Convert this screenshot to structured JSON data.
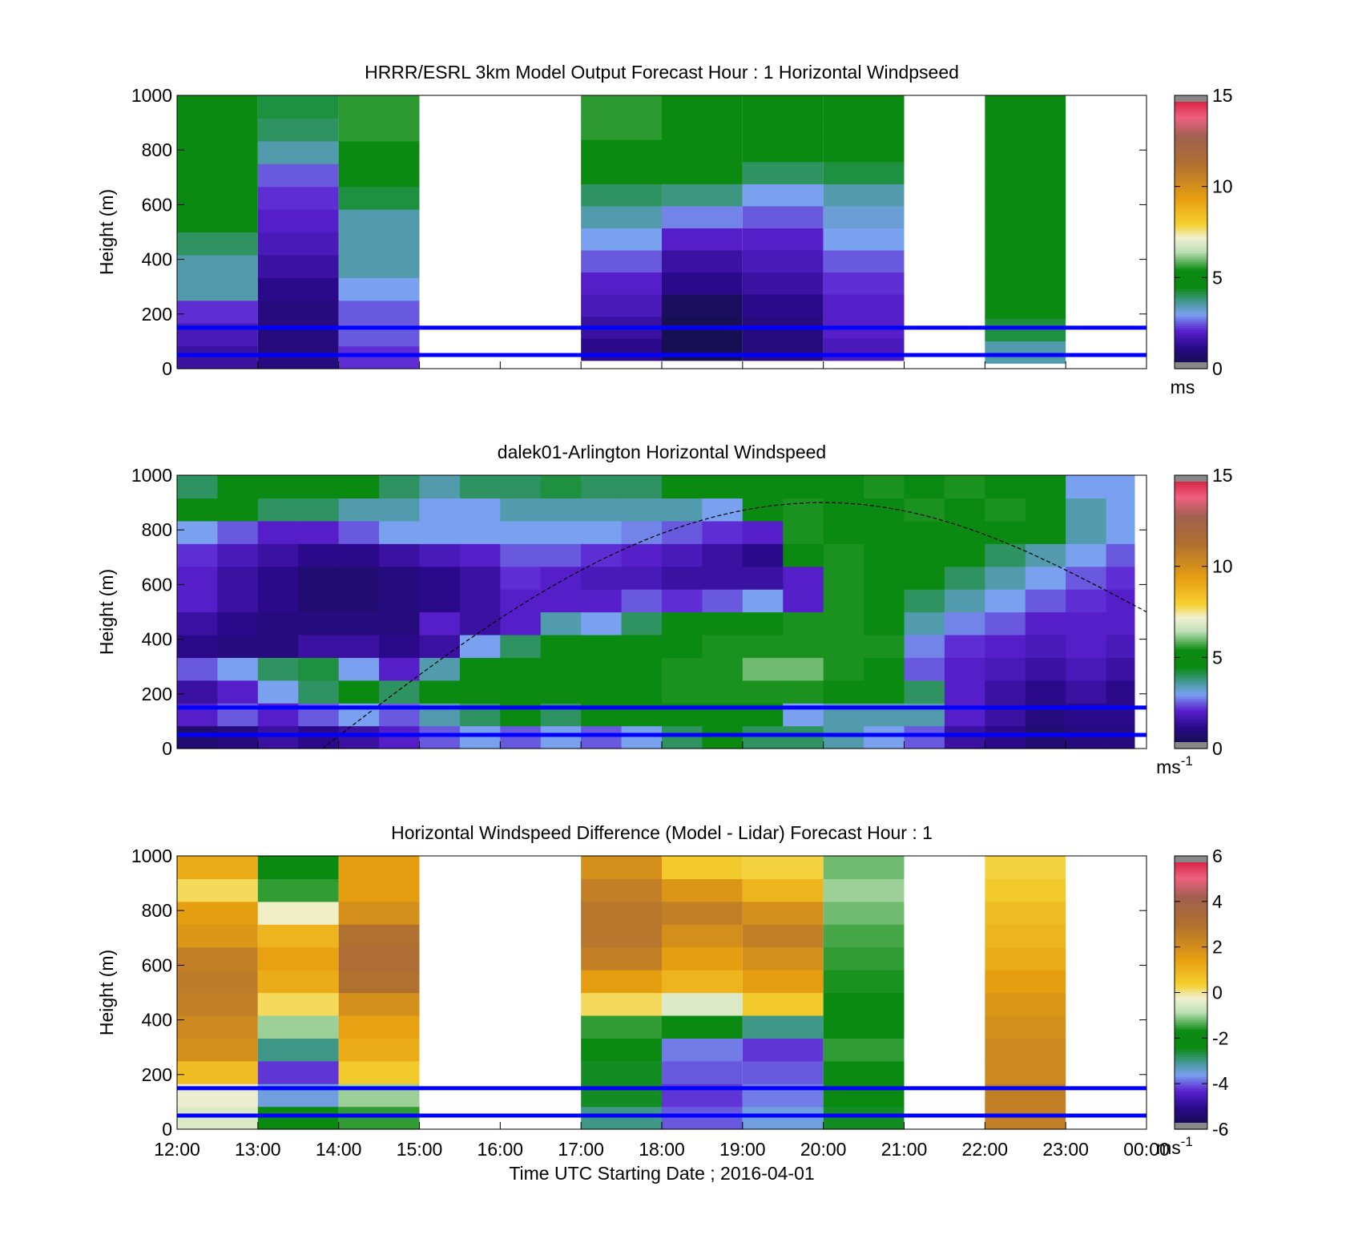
{
  "chart_data": [
    {
      "type": "heatmap",
      "title": "HRRR/ESRL 3km Model Output   Forecast Hour : 1 Horizontal Windpseed",
      "ylabel": "Height (m)",
      "xlabel": "",
      "ylim": [
        0,
        1000
      ],
      "yticks": [
        "0",
        "200",
        "400",
        "600",
        "800",
        "1000"
      ],
      "x_ticks": [
        "12:00",
        "13:00",
        "14:00",
        "15:00",
        "16:00",
        "17:00",
        "18:00",
        "19:00",
        "20:00",
        "21:00",
        "22:00",
        "23:00",
        "00:00"
      ],
      "xlim_hours": [
        12,
        24
      ],
      "colorbar": {
        "range": [
          0,
          15
        ],
        "ticks": [
          "0",
          "5",
          "10",
          "15"
        ],
        "unit": "ms",
        "unit_sup": ""
      },
      "reference_lines_m": [
        50,
        150
      ],
      "columns": [
        {
          "start": 12,
          "end": 13,
          "bottom": 0,
          "top": 1000,
          "values": [
            1.5,
            1.8,
            2.2,
            3.5,
            3.5,
            4.0,
            5.0,
            5.0,
            5.0,
            5.2,
            5.2,
            5.2
          ]
        },
        {
          "start": 13,
          "end": 14,
          "bottom": 0,
          "top": 1000,
          "values": [
            1.0,
            1.0,
            1.0,
            1.2,
            1.5,
            1.8,
            2.0,
            2.2,
            2.5,
            3.5,
            4.0,
            4.2
          ]
        },
        {
          "start": 14,
          "end": 15,
          "bottom": 0,
          "top": 1000,
          "values": [
            2.2,
            2.5,
            2.5,
            3.0,
            3.5,
            3.5,
            3.5,
            4.2,
            4.5,
            5.2,
            5.6,
            5.6
          ]
        },
        {
          "start": 17,
          "end": 18,
          "bottom": 30,
          "top": 1000,
          "values": [
            1.2,
            1.5,
            1.8,
            2.0,
            2.5,
            3.0,
            3.5,
            4.0,
            5.0,
            5.2,
            5.6,
            5.6
          ]
        },
        {
          "start": 18,
          "end": 19,
          "bottom": 30,
          "top": 1000,
          "values": [
            0.3,
            0.3,
            0.5,
            1.2,
            1.5,
            2.0,
            2.8,
            3.8,
            4.6,
            4.8,
            5.2,
            5.2
          ]
        },
        {
          "start": 19,
          "end": 20,
          "bottom": 30,
          "top": 1000,
          "values": [
            1.0,
            1.0,
            1.2,
            1.5,
            1.8,
            2.0,
            2.5,
            3.0,
            4.0,
            4.8,
            5.2,
            5.2
          ]
        },
        {
          "start": 20,
          "end": 21,
          "bottom": 30,
          "top": 1000,
          "values": [
            1.8,
            2.0,
            2.0,
            2.2,
            2.5,
            3.0,
            3.2,
            3.5,
            4.2,
            4.8,
            5.2,
            5.2
          ]
        },
        {
          "start": 22,
          "end": 23,
          "bottom": 20,
          "top": 1000,
          "values": [
            3.5,
            4.2,
            4.6,
            4.8,
            5.0,
            5.0,
            5.2,
            5.2,
            5.2,
            5.2,
            5.2,
            5.2
          ]
        }
      ]
    },
    {
      "type": "heatmap",
      "title": "dalek01-Arlington  Horizontal Windspeed",
      "ylabel": "Height (m)",
      "xlabel": "",
      "ylim": [
        0,
        1000
      ],
      "yticks": [
        "0",
        "200",
        "400",
        "600",
        "800",
        "1000"
      ],
      "x_ticks": [
        "12:00",
        "13:00",
        "14:00",
        "15:00",
        "16:00",
        "17:00",
        "18:00",
        "19:00",
        "20:00",
        "21:00",
        "22:00",
        "23:00",
        "00:00"
      ],
      "xlim_hours": [
        12,
        24
      ],
      "colorbar": {
        "range": [
          0,
          15
        ],
        "ticks": [
          "0",
          "5",
          "10",
          "15"
        ],
        "unit": "ms",
        "unit_sup": "-1"
      },
      "reference_lines_m": [
        50,
        150
      ],
      "data_end_hour": 23.85,
      "boundary_layer_curve": {
        "start_hour": 13.8,
        "peak_hour": 20.0,
        "peak_height_m": 900,
        "end_hour": 24.0,
        "end_height_m": 500
      },
      "stations": [
        {
          "hour": 12.0,
          "values": [
            0.8,
            2.0,
            1.5,
            2.5,
            1.2,
            1.5,
            2.0,
            2.0,
            2.2,
            3.0,
            5.0,
            4.0
          ]
        },
        {
          "hour": 12.5,
          "values": [
            1.0,
            2.5,
            2.0,
            3.0,
            1.0,
            1.2,
            1.5,
            1.5,
            1.8,
            2.5,
            4.5,
            4.5
          ]
        },
        {
          "hour": 13.0,
          "values": [
            1.5,
            2.0,
            3.0,
            4.0,
            1.0,
            1.0,
            1.2,
            1.2,
            1.5,
            2.0,
            4.0,
            4.8
          ]
        },
        {
          "hour": 13.5,
          "values": [
            1.2,
            2.5,
            4.0,
            4.2,
            1.5,
            1.0,
            0.8,
            0.8,
            1.2,
            2.0,
            4.0,
            5.0
          ]
        },
        {
          "hour": 14.0,
          "values": [
            1.5,
            3.0,
            4.5,
            3.0,
            1.5,
            1.0,
            0.8,
            0.8,
            1.2,
            2.5,
            3.5,
            4.5
          ]
        },
        {
          "hour": 14.5,
          "values": [
            2.0,
            2.5,
            4.0,
            2.0,
            1.2,
            1.0,
            1.0,
            1.0,
            1.5,
            3.0,
            3.5,
            4.0
          ]
        },
        {
          "hour": 15.0,
          "values": [
            2.5,
            3.5,
            4.5,
            3.5,
            1.5,
            2.0,
            1.2,
            1.2,
            1.8,
            3.0,
            3.0,
            3.5
          ]
        },
        {
          "hour": 15.5,
          "values": [
            3.0,
            4.0,
            4.5,
            4.5,
            3.0,
            1.5,
            1.5,
            1.5,
            2.0,
            3.0,
            3.0,
            4.0
          ]
        },
        {
          "hour": 16.0,
          "values": [
            2.5,
            4.5,
            5.0,
            5.0,
            4.0,
            2.0,
            2.0,
            2.2,
            2.5,
            3.0,
            3.5,
            4.0
          ]
        },
        {
          "hour": 16.5,
          "values": [
            3.0,
            4.0,
            5.0,
            5.2,
            5.0,
            3.5,
            2.0,
            2.0,
            2.5,
            3.0,
            3.5,
            4.2
          ]
        },
        {
          "hour": 17.0,
          "values": [
            2.5,
            4.5,
            5.2,
            5.2,
            5.0,
            3.0,
            2.0,
            1.8,
            2.2,
            3.0,
            3.5,
            4.0
          ]
        },
        {
          "hour": 17.5,
          "values": [
            3.0,
            4.5,
            5.2,
            5.2,
            5.2,
            4.0,
            2.5,
            1.8,
            2.0,
            2.8,
            3.5,
            4.0
          ]
        },
        {
          "hour": 18.0,
          "values": [
            4.0,
            5.0,
            5.5,
            5.5,
            5.2,
            5.0,
            2.2,
            1.5,
            1.8,
            2.5,
            3.5,
            4.5
          ]
        },
        {
          "hour": 18.5,
          "values": [
            4.5,
            5.0,
            5.5,
            5.5,
            5.5,
            5.0,
            2.5,
            1.5,
            1.5,
            2.2,
            3.0,
            5.0
          ]
        },
        {
          "hour": 19.0,
          "values": [
            4.0,
            4.5,
            5.5,
            6.0,
            5.5,
            4.5,
            3.0,
            1.5,
            1.2,
            2.0,
            4.5,
            5.0
          ]
        },
        {
          "hour": 19.5,
          "values": [
            4.0,
            3.0,
            5.5,
            6.0,
            5.5,
            5.5,
            2.0,
            2.0,
            5.0,
            5.5,
            5.5,
            5.2
          ]
        },
        {
          "hour": 20.0,
          "values": [
            3.5,
            3.5,
            5.0,
            5.5,
            5.5,
            5.5,
            5.5,
            5.5,
            5.5,
            5.2,
            5.2,
            5.0
          ]
        },
        {
          "hour": 20.5,
          "values": [
            3.0,
            3.5,
            4.5,
            5.0,
            5.5,
            5.2,
            5.2,
            5.0,
            5.0,
            5.2,
            5.0,
            5.5
          ]
        },
        {
          "hour": 21.0,
          "values": [
            2.5,
            3.5,
            4.0,
            2.5,
            2.8,
            3.5,
            4.0,
            4.5,
            4.5,
            5.0,
            5.5,
            5.0
          ]
        },
        {
          "hour": 21.5,
          "values": [
            1.5,
            2.0,
            2.0,
            2.0,
            2.2,
            2.8,
            3.5,
            4.0,
            4.8,
            5.0,
            5.2,
            5.5
          ]
        },
        {
          "hour": 22.0,
          "values": [
            1.2,
            1.5,
            1.5,
            1.8,
            2.0,
            2.5,
            3.0,
            3.5,
            4.0,
            4.8,
            5.5,
            5.2
          ]
        },
        {
          "hour": 22.5,
          "values": [
            0.8,
            1.0,
            1.2,
            1.5,
            1.8,
            2.0,
            2.5,
            3.0,
            3.5,
            4.5,
            5.0,
            4.5
          ]
        },
        {
          "hour": 23.0,
          "values": [
            1.0,
            1.2,
            1.5,
            1.8,
            2.0,
            2.0,
            2.2,
            2.5,
            3.0,
            3.5,
            3.5,
            3.0
          ]
        },
        {
          "hour": 23.5,
          "values": [
            1.0,
            1.2,
            1.2,
            1.5,
            1.8,
            2.0,
            2.0,
            2.2,
            2.5,
            3.0,
            3.0,
            3.0
          ]
        }
      ]
    },
    {
      "type": "heatmap",
      "title": "Horizontal Windspeed Difference (Model - Lidar) Forecast Hour : 1",
      "ylabel": "Height (m)",
      "xlabel": "Time UTC  Starting Date ; 2016-04-01",
      "ylim": [
        0,
        1000
      ],
      "yticks": [
        "0",
        "200",
        "400",
        "600",
        "800",
        "1000"
      ],
      "x_ticks": [
        "12:00",
        "13:00",
        "14:00",
        "15:00",
        "16:00",
        "17:00",
        "18:00",
        "19:00",
        "20:00",
        "21:00",
        "22:00",
        "23:00",
        "00:00"
      ],
      "xlim_hours": [
        12,
        24
      ],
      "colorbar": {
        "range": [
          -6,
          6
        ],
        "ticks": [
          "-6",
          "-4",
          "-2",
          "0",
          "2",
          "4",
          "6"
        ],
        "unit": "ms",
        "unit_sup": "-1"
      },
      "reference_lines_m": [
        50,
        150
      ],
      "columns": [
        {
          "start": 12,
          "end": 13,
          "bottom": 0,
          "top": 1000,
          "values": [
            -0.5,
            -0.3,
            0.8,
            2.0,
            2.2,
            2.5,
            2.6,
            2.5,
            1.8,
            1.5,
            0.2,
            1.2
          ]
        },
        {
          "start": 13,
          "end": 14,
          "bottom": 0,
          "top": 1000,
          "values": [
            -2.0,
            -3.5,
            -4.2,
            -3.0,
            -1.0,
            0.2,
            1.2,
            1.4,
            1.0,
            -0.2,
            -1.5,
            -2.0
          ]
        },
        {
          "start": 14,
          "end": 15,
          "bottom": 0,
          "top": 1000,
          "values": [
            -1.5,
            -1.0,
            0.5,
            1.2,
            1.4,
            2.0,
            3.0,
            3.2,
            3.0,
            2.0,
            1.5,
            1.5
          ]
        },
        {
          "start": 17,
          "end": 18,
          "bottom": 0,
          "top": 1000,
          "values": [
            -3.0,
            -2.5,
            -2.5,
            -2.2,
            -1.5,
            0.2,
            1.5,
            2.5,
            2.8,
            2.8,
            2.5,
            2.0
          ]
        },
        {
          "start": 18,
          "end": 19,
          "bottom": 0,
          "top": 1000,
          "values": [
            -4.0,
            -4.2,
            -4.0,
            -3.8,
            -2.0,
            -0.5,
            1.0,
            1.5,
            2.0,
            2.5,
            1.8,
            0.5
          ]
        },
        {
          "start": 19,
          "end": 20,
          "bottom": 0,
          "top": 1000,
          "values": [
            -3.5,
            -3.8,
            -4.0,
            -4.2,
            -3.0,
            0.5,
            1.5,
            2.0,
            2.5,
            2.0,
            1.0,
            0.3
          ]
        },
        {
          "start": 20,
          "end": 21,
          "bottom": 0,
          "top": 1000,
          "values": [
            -2.5,
            -2.0,
            -1.8,
            -1.5,
            -1.8,
            -2.0,
            -1.6,
            -1.5,
            -1.4,
            -1.2,
            -1.0,
            -1.2
          ]
        },
        {
          "start": 22,
          "end": 23,
          "bottom": 0,
          "top": 1000,
          "values": [
            2.5,
            2.5,
            2.2,
            2.2,
            2.0,
            1.8,
            1.5,
            1.2,
            1.0,
            0.8,
            0.5,
            0.3
          ]
        }
      ]
    }
  ]
}
